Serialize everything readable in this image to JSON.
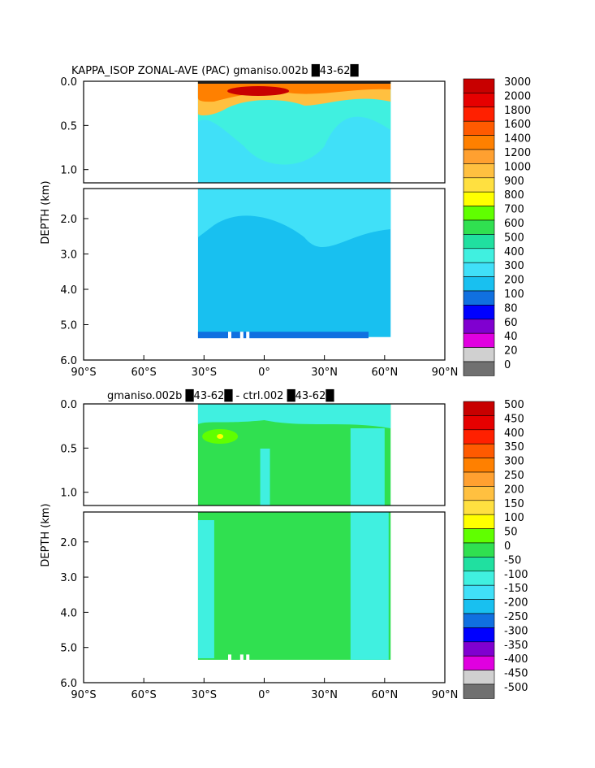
{
  "chart_data": [
    {
      "type": "heatmap",
      "title": "KAPPA_ISOP ZONAL-AVE (PAC) gmaniso.002b █43-62█",
      "ylabel": "DEPTH (km)",
      "x_ticks": [
        "90°S",
        "60°S",
        "30°S",
        "0°",
        "30°N",
        "60°N",
        "90°N"
      ],
      "x_tick_values": [
        -90,
        -60,
        -30,
        0,
        30,
        60,
        90
      ],
      "xlim": [
        -90,
        90
      ],
      "y_ticks_upper": [
        "0.0",
        "0.5",
        "1.0"
      ],
      "y_ticks_lower": [
        "2.0",
        "3.0",
        "4.0",
        "5.0",
        "6.0"
      ],
      "ylim_upper_km": [
        0,
        1.15
      ],
      "ylim_lower_km": [
        1.15,
        6.0
      ],
      "colorbar_levels": [
        "3000",
        "2000",
        "1800",
        "1600",
        "1400",
        "1200",
        "1000",
        "900",
        "800",
        "700",
        "600",
        "500",
        "400",
        "300",
        "200",
        "100",
        "80",
        "60",
        "40",
        "20",
        "0"
      ],
      "colorbar_colors": [
        "#c80000",
        "#e60000",
        "#ff2000",
        "#ff5a00",
        "#ff8000",
        "#ffa030",
        "#ffc040",
        "#ffe040",
        "#ffff00",
        "#60ff00",
        "#30e050",
        "#20e0a0",
        "#40f0e0",
        "#40e0f8",
        "#18c0f0",
        "#1070e0",
        "#0000ff",
        "#8000d0",
        "#e000e0",
        "#d0d0d0",
        "#707070"
      ],
      "data_extent_lat": [
        -33,
        63
      ],
      "background_value": "200-300"
    },
    {
      "type": "heatmap",
      "title": "gmaniso.002b █43-62█ - ctrl.002 █43-62█",
      "ylabel": "DEPTH (km)",
      "x_ticks": [
        "90°S",
        "60°S",
        "30°S",
        "0°",
        "30°N",
        "60°N",
        "90°N"
      ],
      "x_tick_values": [
        -90,
        -60,
        -30,
        0,
        30,
        60,
        90
      ],
      "xlim": [
        -90,
        90
      ],
      "y_ticks_upper": [
        "0.0",
        "0.5",
        "1.0"
      ],
      "y_ticks_lower": [
        "2.0",
        "3.0",
        "4.0",
        "5.0",
        "6.0"
      ],
      "ylim_upper_km": [
        0,
        1.15
      ],
      "ylim_lower_km": [
        1.15,
        6.0
      ],
      "colorbar_levels": [
        "500",
        "450",
        "400",
        "350",
        "300",
        "250",
        "200",
        "150",
        "100",
        "50",
        "0",
        "-50",
        "-100",
        "-150",
        "-200",
        "-250",
        "-300",
        "-350",
        "-400",
        "-450",
        "-500"
      ],
      "colorbar_colors": [
        "#c80000",
        "#e60000",
        "#ff2000",
        "#ff5a00",
        "#ff8000",
        "#ffa030",
        "#ffc040",
        "#ffe040",
        "#ffff00",
        "#60ff00",
        "#30e050",
        "#20e0a0",
        "#40f0e0",
        "#40e0f8",
        "#18c0f0",
        "#1070e0",
        "#0000ff",
        "#8000d0",
        "#e000e0",
        "#d0d0d0",
        "#707070"
      ],
      "data_extent_lat": [
        -33,
        63
      ],
      "background_value": "0-50"
    }
  ]
}
